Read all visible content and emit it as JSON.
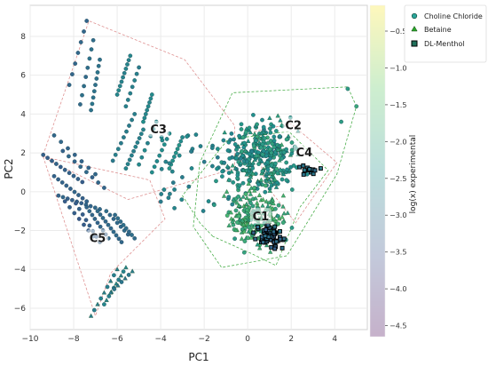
{
  "chart_data": {
    "type": "scatter",
    "title": "",
    "xlabel": "PC1",
    "ylabel": "PC2",
    "xlim": [
      -10,
      5.5
    ],
    "ylim": [
      -7.1,
      9.6
    ],
    "xticks": [
      -10,
      -8,
      -6,
      -4,
      -2,
      0,
      2,
      4
    ],
    "yticks": [
      -6,
      -4,
      -2,
      0,
      2,
      4,
      6,
      8
    ],
    "xtick_labels": [
      "−10",
      "−8",
      "−6",
      "−4",
      "−2",
      "0",
      "2",
      "4"
    ],
    "ytick_labels": [
      "−6",
      "−4",
      "−2",
      "0",
      "2",
      "4",
      "6",
      "8"
    ],
    "grid": true,
    "legend_position": "top-right, outside plot",
    "series": [
      {
        "name": "Choline Chloride",
        "marker": "circle"
      },
      {
        "name": "Betaine",
        "marker": "triangle"
      },
      {
        "name": "DL-Menthol",
        "marker": "square"
      }
    ],
    "colorbar": {
      "label": "log(x) experimental",
      "range": [
        -4.65,
        -0.15
      ],
      "ticks": [
        -0.5,
        -1.0,
        -1.5,
        -2.0,
        -2.5,
        -3.0,
        -3.5,
        -4.0,
        -4.5
      ],
      "tick_labels": [
        "−0.5",
        "−1.0",
        "−1.5",
        "−2.0",
        "−2.5",
        "−3.0",
        "−3.5",
        "−4.0",
        "−4.5"
      ],
      "colormap": "viridis"
    },
    "clusters": [
      {
        "label": "C1",
        "x": 0.6,
        "y": -1.3,
        "hull": [
          [
            -1.6,
            -2.3
          ],
          [
            -2.2,
            -1.6
          ],
          [
            -3,
            -0.2
          ],
          [
            -0.9,
            2.7
          ],
          [
            1.9,
            3.1
          ],
          [
            3.7,
            1.1
          ],
          [
            2.4,
            -0.8
          ],
          [
            1.3,
            -3.8
          ],
          [
            0.2,
            -3.2
          ]
        ]
      },
      {
        "label": "C2",
        "x": 2.1,
        "y": 3.4,
        "hull": [
          [
            -2.2,
            1.5
          ],
          [
            -2.5,
            -1.8
          ],
          [
            -1.2,
            -3.9
          ],
          [
            1.8,
            -3.3
          ],
          [
            4.1,
            0.9
          ],
          [
            5,
            4.4
          ],
          [
            4.6,
            5.4
          ],
          [
            -0.7,
            5.1
          ]
        ]
      },
      {
        "label": "C3",
        "x": -4.1,
        "y": 3.2,
        "hull": [
          [
            -9.4,
            1.9
          ],
          [
            -7.3,
            8.8
          ],
          [
            -2.9,
            6.8
          ],
          [
            -0.6,
            3.4
          ],
          [
            -0.6,
            1.2
          ],
          [
            -5.5,
            -0.4
          ],
          [
            -9.1,
            1.6
          ]
        ]
      },
      {
        "label": "C4",
        "x": 2.6,
        "y": 2.0,
        "hull": [
          [
            0.3,
            3.1
          ],
          [
            2,
            3.5
          ],
          [
            4.1,
            1.5
          ],
          [
            2.2,
            -1.6
          ],
          [
            0.8,
            0.4
          ]
        ]
      },
      {
        "label": "C5",
        "x": -6.9,
        "y": -2.4,
        "hull": [
          [
            -9.4,
            1.8
          ],
          [
            -7,
            -6.4
          ],
          [
            -6.3,
            -4.2
          ],
          [
            -3.8,
            -1.4
          ],
          [
            -4.5,
            0.6
          ]
        ]
      }
    ]
  }
}
